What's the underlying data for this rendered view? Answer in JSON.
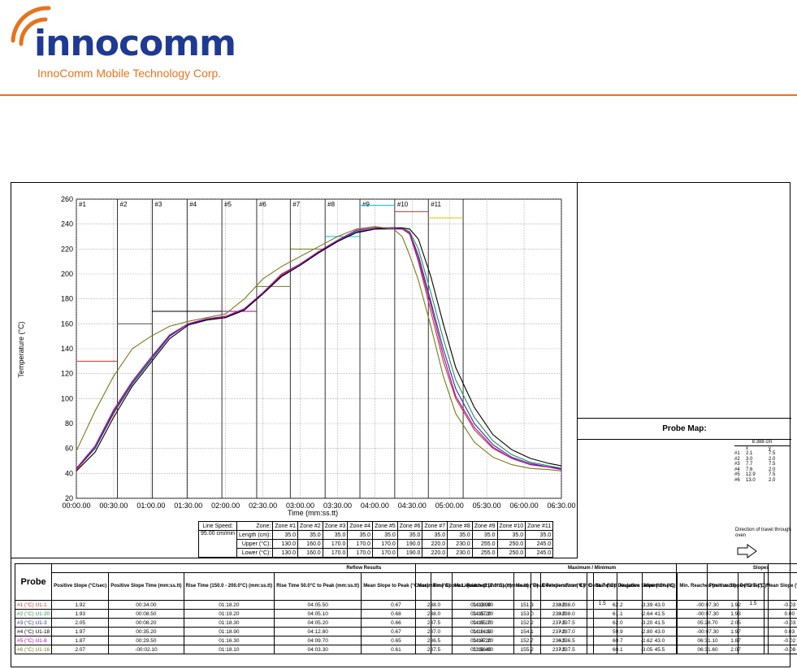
{
  "header": {
    "company": "innocomm",
    "company_full": "InnoComm Mobile Technology Corp.",
    "brand_color": "#1f3a93",
    "accent_color": "#e8731c"
  },
  "chart_data": {
    "type": "line",
    "ylabel": "Temperature (°C)",
    "xlabel": "Time (mm:ss.tt)",
    "ylim": [
      20,
      260
    ],
    "y_ticks": [
      20,
      40,
      60,
      80,
      100,
      120,
      140,
      160,
      180,
      200,
      220,
      240,
      260
    ],
    "x_ticks": [
      "00:00.00",
      "00:30.00",
      "01:00.00",
      "01:30.00",
      "02:00.00",
      "02:30.00",
      "03:00.00",
      "03:30.00",
      "04:00.00",
      "04:30.00",
      "05:00.00",
      "05:30.00",
      "06:00.00",
      "06:30.00"
    ],
    "xlim_sec": [
      0,
      390
    ],
    "zone_labels": [
      "#1",
      "#2",
      "#3",
      "#4",
      "#5",
      "#6",
      "#7",
      "#8",
      "#9",
      "#10",
      "#11"
    ],
    "zone_boundaries_sec": [
      0,
      33,
      61,
      89,
      117,
      145,
      172,
      200,
      228,
      256,
      283,
      311
    ],
    "zone_upper": [
      130,
      160,
      170,
      170,
      170,
      190,
      220,
      230,
      255,
      250,
      245
    ],
    "zone_lower": [
      130,
      160,
      170,
      170,
      170,
      190,
      220,
      230,
      255,
      250,
      245
    ],
    "setpoint_colors": [
      "#c0392b",
      "#555555",
      "#000000",
      "#000000",
      "#a000a0",
      "#6b7a1f",
      "#6b7a1f",
      "#00bcd4",
      "#00bcd4",
      "#c0392b",
      "#e0c000"
    ],
    "grid": true,
    "series": [
      {
        "name": "#1 (°C) U1-1",
        "color": "#c0392b",
        "x": [
          0,
          15,
          30,
          45,
          60,
          75,
          90,
          105,
          120,
          135,
          150,
          165,
          180,
          195,
          210,
          225,
          240,
          255,
          262,
          268,
          275,
          285,
          295,
          305,
          320,
          335,
          350,
          365,
          380,
          390
        ],
        "y": [
          43,
          60,
          88,
          112,
          131,
          150,
          160,
          164,
          165,
          172,
          185,
          200,
          208,
          218,
          227,
          235,
          237,
          237,
          236,
          232,
          210,
          170,
          130,
          100,
          75,
          60,
          52,
          47,
          45,
          44
        ]
      },
      {
        "name": "#2 (°C) U1-20",
        "color": "#2e8b57",
        "x": [
          0,
          15,
          30,
          45,
          60,
          75,
          90,
          105,
          120,
          135,
          150,
          165,
          180,
          195,
          210,
          225,
          240,
          255,
          262,
          268,
          275,
          285,
          295,
          305,
          320,
          335,
          350,
          365,
          380,
          390
        ],
        "y": [
          44,
          61,
          90,
          113,
          132,
          151,
          160,
          164,
          166,
          172,
          185,
          199,
          208,
          218,
          227,
          235,
          237,
          237,
          237,
          234,
          220,
          185,
          148,
          115,
          85,
          66,
          55,
          49,
          46,
          44
        ]
      },
      {
        "name": "#3 (°C) U1-3",
        "color": "#1f3a93",
        "x": [
          0,
          15,
          30,
          45,
          60,
          75,
          90,
          105,
          120,
          135,
          150,
          165,
          180,
          195,
          210,
          225,
          240,
          255,
          262,
          268,
          275,
          285,
          295,
          305,
          320,
          335,
          350,
          365,
          380,
          390
        ],
        "y": [
          44,
          60,
          89,
          112,
          131,
          150,
          160,
          163,
          165,
          171,
          184,
          198,
          207,
          217,
          226,
          234,
          236,
          236,
          236,
          233,
          215,
          178,
          140,
          108,
          80,
          63,
          53,
          48,
          45,
          44
        ]
      },
      {
        "name": "#4 (°C) U1-18",
        "color": "#000000",
        "x": [
          0,
          15,
          30,
          45,
          60,
          75,
          90,
          105,
          120,
          135,
          150,
          165,
          180,
          195,
          210,
          225,
          240,
          255,
          262,
          268,
          275,
          285,
          295,
          305,
          320,
          335,
          350,
          365,
          380,
          390
        ],
        "y": [
          42,
          57,
          85,
          110,
          129,
          148,
          159,
          163,
          165,
          171,
          184,
          198,
          207,
          217,
          226,
          233,
          236,
          237,
          237,
          236,
          228,
          198,
          160,
          125,
          93,
          71,
          59,
          52,
          48,
          46
        ]
      },
      {
        "name": "#5 (°C) U1-8",
        "color": "#b000b0",
        "x": [
          0,
          15,
          30,
          45,
          60,
          75,
          90,
          105,
          120,
          135,
          150,
          165,
          180,
          195,
          210,
          225,
          240,
          255,
          262,
          268,
          275,
          285,
          295,
          305,
          320,
          335,
          350,
          365,
          380,
          390
        ],
        "y": [
          44,
          62,
          91,
          114,
          133,
          151,
          160,
          164,
          166,
          172,
          185,
          199,
          208,
          218,
          227,
          235,
          237,
          237,
          236,
          233,
          212,
          175,
          135,
          102,
          77,
          61,
          52,
          47,
          45,
          43
        ]
      },
      {
        "name": "#6 (°C) U1-16",
        "color": "#7a7a1a",
        "x": [
          0,
          15,
          30,
          45,
          60,
          75,
          90,
          105,
          120,
          135,
          150,
          165,
          180,
          195,
          210,
          225,
          240,
          255,
          262,
          268,
          275,
          285,
          295,
          305,
          320,
          335,
          350,
          365,
          380,
          390
        ],
        "y": [
          58,
          90,
          118,
          140,
          150,
          158,
          162,
          165,
          168,
          180,
          196,
          206,
          214,
          222,
          230,
          236,
          238,
          236,
          230,
          215,
          195,
          158,
          118,
          88,
          65,
          53,
          47,
          44,
          43,
          42
        ]
      }
    ]
  },
  "zone_table": {
    "line_speed_label": "Line Speed:",
    "line_speed": "95.00 cm/min",
    "zone_label": "Zone:",
    "length_label": "Length (cm):",
    "upper_label": "Upper (°C):",
    "lower_label": "Lower (°C):",
    "zones": [
      "Zone #1",
      "Zone #2",
      "Zone #3",
      "Zone #4",
      "Zone #5",
      "Zone #6",
      "Zone #7",
      "Zone #8",
      "Zone #9",
      "Zone #10",
      "Zone #11"
    ],
    "lengths": [
      "35.0",
      "35.0",
      "35.0",
      "35.0",
      "35.0",
      "35.0",
      "35.0",
      "35.0",
      "35.0",
      "35.0",
      "35.0"
    ],
    "upper": [
      "130.0",
      "160.0",
      "170.0",
      "170.0",
      "170.0",
      "190.0",
      "220.0",
      "230.0",
      "255.0",
      "250.0",
      "245.0"
    ],
    "lower": [
      "130.0",
      "160.0",
      "170.0",
      "170.0",
      "170.0",
      "190.0",
      "220.0",
      "230.0",
      "255.0",
      "250.0",
      "245.0"
    ]
  },
  "probe_map": {
    "title": "Probe Map:",
    "unit_header": "8.388 cm",
    "col_x": "x",
    "col_y": "y",
    "rows": [
      {
        "id": "#1",
        "x": "2.1",
        "y": "7.5"
      },
      {
        "id": "#2",
        "x": "3.0",
        "y": "2.0"
      },
      {
        "id": "#3",
        "x": "7.7",
        "y": "7.5"
      },
      {
        "id": "#4",
        "x": "7.6",
        "y": "2.0"
      },
      {
        "id": "#5",
        "x": "12.9",
        "y": "7.5"
      },
      {
        "id": "#6",
        "x": "13.0",
        "y": "2.0"
      }
    ],
    "travel_text": "Direction of travel through oven"
  },
  "results": {
    "probe_header": "Probe",
    "reflow_title": "Reflow Results",
    "maxmin_title": "Maximum / Minimum",
    "slopes_title": "Slopes",
    "reflow_cols": [
      "Positive Slope (°C/sec)",
      "Positive Slope Time (mm:ss.tt)",
      "Rise Time (150.0 - 200.0°C) (mm:ss.tt)",
      "Rise Time 50.0°C to Peak (mm:ss.tt)",
      "Mean Slope to Peak (°C/sec)",
      "Time Above Liquidus (217.0°C) (mm:ss.tt)",
      "Peak Temperature (°C)",
      "Delta T (°C)",
      "Negative Slope (°C/sec)"
    ],
    "maxmin_cols": [
      "Maximum (°C)",
      "Max. Reached (mm:ss.tt)",
      "Mean (°C)",
      "Deviation From 0.0°C",
      "Standard Deviation",
      "Minimum (°C)",
      "Min. Reached (mm:ss.tt)",
      "Delta T (°C)"
    ],
    "slope_cols": [
      "Positive Slope (°C/sec)",
      "Mean Slope (°C/sec)"
    ],
    "delta_t_reflow": "1.5",
    "delta_t_maxmin": "1.5",
    "rows": [
      {
        "probe": "#1 (°C) U1-1",
        "color": "#c0392b",
        "r": [
          "1.92",
          "00:34.00",
          "01:18.20",
          "04:05.50",
          "0.67",
          "01:13.90",
          "238.0",
          "-3.39"
        ],
        "m": [
          "238.0",
          "04:08.90",
          "151.3",
          "+238.0",
          "62.2",
          "43.0",
          "-00:07.30"
        ],
        "s": [
          "1.92",
          "-0.03"
        ]
      },
      {
        "probe": "#2 (°C) U1-20",
        "color": "#2e8b57",
        "r": [
          "1.93",
          "00:08.50",
          "01:19.20",
          "04:05.10",
          "0.68",
          "01:15.20",
          "238.0",
          "-2.64"
        ],
        "m": [
          "238.0",
          "04:07.20",
          "153.0",
          "+238.0",
          "61.1",
          "41.5",
          "-00:07.30"
        ],
        "s": [
          "1.93",
          "0.00"
        ]
      },
      {
        "probe": "#3 (°C) U1-3",
        "color": "#1f3a93",
        "r": [
          "2.05",
          "00:08.20",
          "01:18.30",
          "04:05.20",
          "0.66",
          "01:15.10",
          "237.5",
          "-3.20"
        ],
        "m": [
          "237.5",
          "04:05.70",
          "152.2",
          "+237.5",
          "62.0",
          "41.5",
          "05:28.70"
        ],
        "s": [
          "2.05",
          "-0.03"
        ]
      },
      {
        "probe": "#4 (°C) U1-18",
        "color": "#000000",
        "r": [
          "1.97",
          "00:35.20",
          "01:18.90",
          "04:12.80",
          "0.67",
          "01:16.10",
          "237.0",
          "-2.80"
        ],
        "m": [
          "237.0",
          "04:14.50",
          "154.1",
          "+237.0",
          "59.9",
          "43.0",
          "-00:07.30"
        ],
        "s": [
          "1.97",
          "0.03"
        ]
      },
      {
        "probe": "#5 (°C) U1-8",
        "color": "#b000b0",
        "r": [
          "1.87",
          "00:29.50",
          "01:16.30",
          "04:09.70",
          "0.65",
          "01:14.20",
          "236.5",
          "-2.62"
        ],
        "m": [
          "236.5",
          "04:07.20",
          "152.7",
          "+236.5",
          "60.7",
          "43.0",
          "06:31.10"
        ],
        "s": [
          "1.87",
          "-0.02"
        ]
      },
      {
        "probe": "#6 (°C) U1-16",
        "color": "#7a7a1a",
        "r": [
          "2.07",
          "-00:02.10",
          "01:18.10",
          "04:03.30",
          "0.61",
          "01:16.40",
          "237.5",
          "-3.05"
        ],
        "m": [
          "237.5",
          "03:56.00",
          "155.2",
          "+237.5",
          "60.1",
          "45.5",
          "06:31.60"
        ],
        "s": [
          "2.07",
          "-0.08"
        ]
      }
    ]
  }
}
